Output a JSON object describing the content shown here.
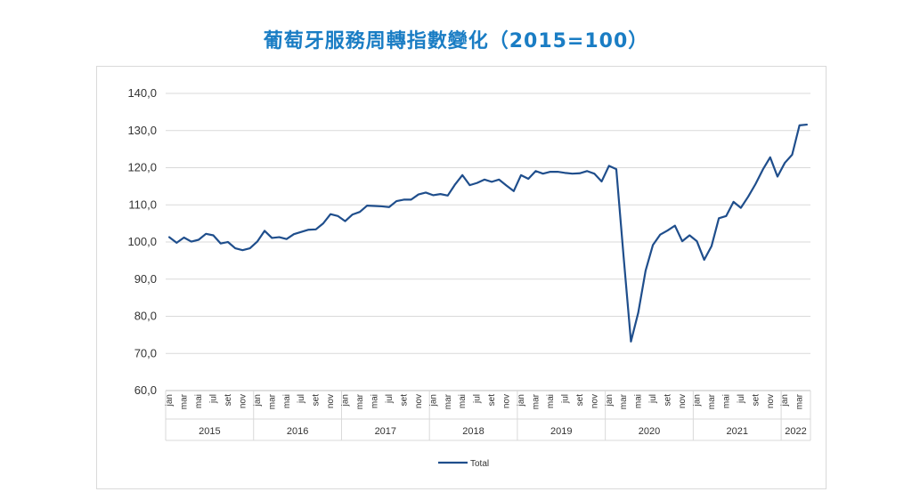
{
  "title": "葡萄牙服務周轉指數變化（2015=100）",
  "chart_data": {
    "type": "line",
    "title": "葡萄牙服務周轉指數變化（2015=100）",
    "ylim": [
      60,
      140
    ],
    "yticks": [
      "60,0",
      "70,0",
      "80,0",
      "90,0",
      "100,0",
      "110,0",
      "120,0",
      "130,0",
      "140,0"
    ],
    "month_labels": [
      "jan",
      "mar",
      "mai",
      "jul",
      "set",
      "nov"
    ],
    "years": [
      "2015",
      "2016",
      "2017",
      "2018",
      "2019",
      "2020",
      "2021",
      "2022"
    ],
    "months_per_year": [
      12,
      12,
      12,
      12,
      12,
      12,
      12,
      4
    ],
    "line_color": "#1f4e8c",
    "legend": "top-bottom-center",
    "series": [
      {
        "name": "Total",
        "values": [
          101.3,
          99.8,
          101.2,
          100.1,
          100.6,
          102.2,
          101.8,
          99.6,
          100.0,
          98.3,
          97.8,
          98.3,
          100.1,
          103.0,
          101.1,
          101.3,
          100.8,
          102.1,
          102.7,
          103.3,
          103.4,
          105.0,
          107.5,
          107.0,
          105.6,
          107.4,
          108.1,
          109.8,
          109.7,
          109.6,
          109.4,
          111.0,
          111.4,
          111.4,
          112.8,
          113.3,
          112.6,
          112.9,
          112.5,
          115.5,
          118.0,
          115.3,
          115.9,
          116.8,
          116.2,
          116.8,
          115.2,
          113.7,
          118.0,
          117.0,
          119.1,
          118.4,
          118.9,
          118.9,
          118.6,
          118.4,
          118.5,
          119.1,
          118.4,
          116.3,
          120.5,
          119.6,
          96.0,
          73.2,
          81.0,
          92.3,
          99.2,
          102.0,
          103.1,
          104.4,
          100.2,
          101.8,
          100.2,
          95.2,
          98.9,
          106.4,
          107.0,
          110.8,
          109.2,
          112.2,
          115.6,
          119.5,
          122.8,
          117.6,
          121.3,
          123.5,
          131.4,
          131.6
        ]
      }
    ]
  }
}
